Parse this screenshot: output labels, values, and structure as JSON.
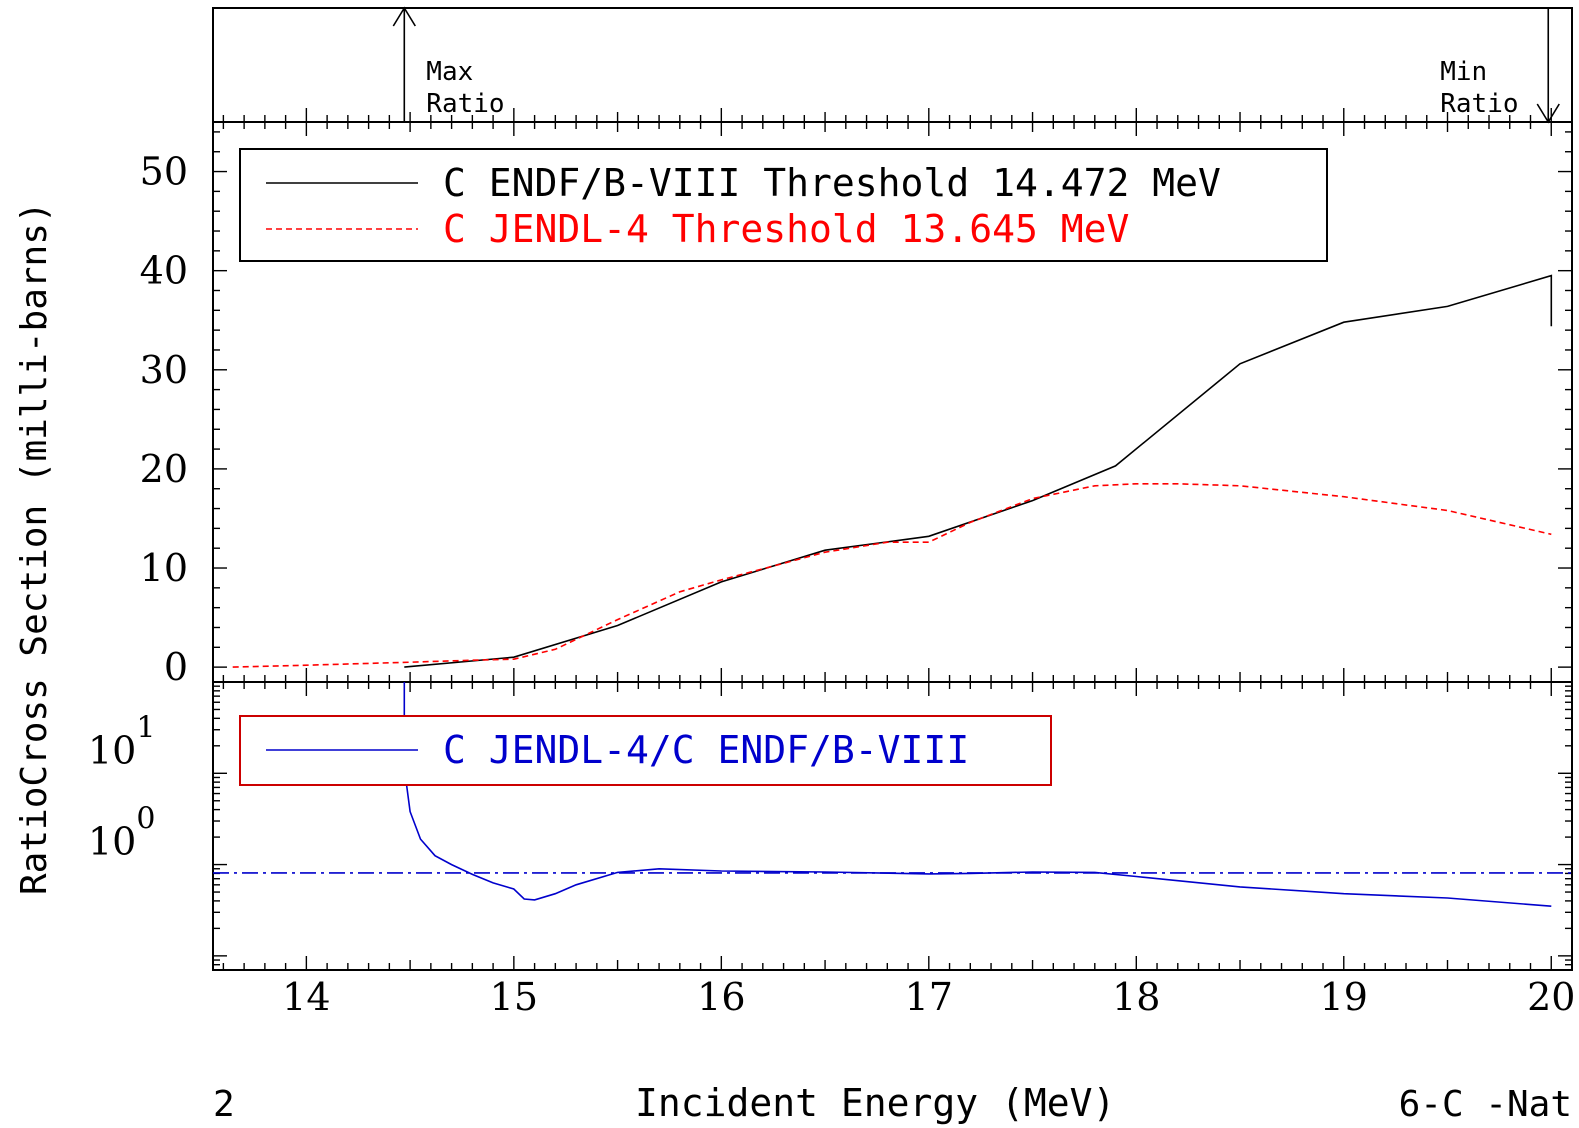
{
  "page": {
    "ylabel_ratio": "Ratio",
    "ylabel_cross": "Cross Section (milli-barns)",
    "xlabel": "Incident Energy (MeV)",
    "footer_left": "2",
    "footer_right": "6-C -Nat",
    "max_ratio_label": [
      "Max",
      "Ratio"
    ],
    "min_ratio_label": [
      "Min",
      "Ratio"
    ]
  },
  "chart_data": [
    {
      "panel": "ratio-extremes",
      "type": "line",
      "max_ratio_energy": 14.472,
      "min_ratio_energy": 20.0,
      "xlim": [
        13.55,
        20.1
      ]
    },
    {
      "panel": "cross-section",
      "type": "line",
      "xlim": [
        13.55,
        20.1
      ],
      "ylim": [
        -1.5,
        55.0
      ],
      "yticks": [
        0,
        10,
        20,
        30,
        40,
        50
      ],
      "ytick_labels": [
        "0",
        "10",
        "20",
        "30",
        "40",
        "50"
      ],
      "legend_position": "top-left",
      "series": [
        {
          "name": "C ENDF/B-VIII Threshold 14.472 MeV",
          "color": "#000000",
          "dash": "solid",
          "x": [
            14.472,
            15.0,
            15.5,
            16.0,
            16.5,
            17.0,
            17.5,
            17.9,
            18.5,
            19.0,
            19.5,
            20.0,
            20.0
          ],
          "y": [
            0.0,
            1.0,
            4.2,
            8.6,
            11.8,
            13.2,
            16.8,
            20.3,
            30.6,
            34.8,
            36.4,
            39.5,
            34.4
          ]
        },
        {
          "name": "C JENDL-4 Threshold 13.645 MeV",
          "color": "#ff0000",
          "dash": "dashed",
          "x": [
            13.645,
            14.0,
            14.5,
            14.8,
            15.0,
            15.2,
            15.5,
            15.8,
            16.0,
            16.5,
            16.8,
            17.0,
            17.2,
            17.5,
            17.8,
            18.0,
            18.2,
            18.5,
            19.0,
            19.5,
            20.0
          ],
          "y": [
            0.0,
            0.2,
            0.5,
            0.7,
            0.8,
            1.8,
            4.8,
            7.6,
            8.8,
            11.6,
            12.6,
            12.6,
            14.6,
            17.0,
            18.3,
            18.5,
            18.5,
            18.3,
            17.2,
            15.8,
            13.4
          ]
        }
      ]
    },
    {
      "panel": "ratio",
      "type": "line",
      "yscale": "log",
      "xlim": [
        13.55,
        20.1
      ],
      "ylim": [
        0.07,
        100
      ],
      "ytick_labels": [
        {
          "base": "10",
          "exp": "0",
          "value": 1
        },
        {
          "base": "10",
          "exp": "1",
          "value": 10
        }
      ],
      "xticks": [
        14,
        15,
        16,
        17,
        18,
        19,
        20
      ],
      "xtick_labels": [
        "14",
        "15",
        "16",
        "17",
        "18",
        "19",
        "20"
      ],
      "legend_position": "top-left",
      "reference_line": {
        "y": 0.81,
        "style": "dash-dot",
        "color": "#0000cc"
      },
      "series": [
        {
          "name": "C JENDL-4/C ENDF/B-VIII",
          "color": "#0000cc",
          "dash": "solid",
          "x": [
            14.472,
            14.472,
            14.5,
            14.55,
            14.62,
            14.7,
            14.8,
            14.9,
            15.0,
            15.05,
            15.1,
            15.2,
            15.3,
            15.5,
            15.7,
            16.0,
            16.5,
            17.0,
            17.2,
            17.5,
            17.8,
            18.0,
            18.5,
            19.0,
            19.5,
            20.0
          ],
          "x_note": "",
          "y": [
            100,
            11.5,
            3.8,
            1.9,
            1.25,
            1.0,
            0.78,
            0.63,
            0.54,
            0.42,
            0.41,
            0.48,
            0.6,
            0.82,
            0.9,
            0.85,
            0.83,
            0.79,
            0.8,
            0.83,
            0.82,
            0.74,
            0.57,
            0.48,
            0.43,
            0.35
          ]
        }
      ]
    }
  ]
}
